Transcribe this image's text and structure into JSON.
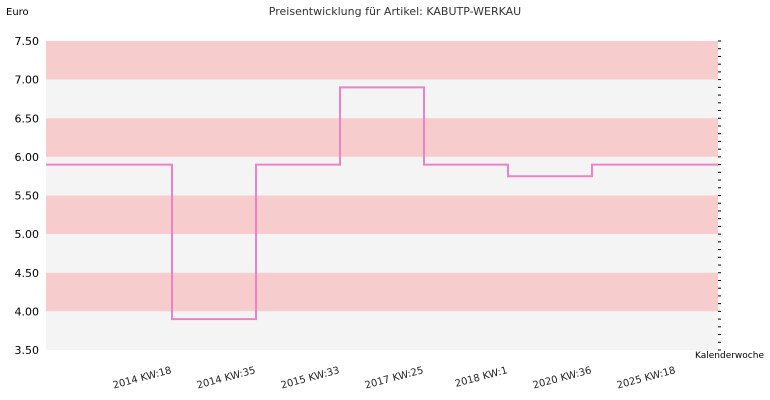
{
  "chart_data": {
    "type": "line",
    "step": true,
    "title": "Preisentwicklung für Artikel: KABUTP-WERKAU",
    "ylabel": "Euro",
    "xlabel": "Kalenderwoche",
    "ylim": [
      3.5,
      7.5
    ],
    "yticks": [
      "7.50",
      "7.00",
      "6.50",
      "6.00",
      "5.50",
      "5.00",
      "4.50",
      "4.00",
      "3.50"
    ],
    "categories": [
      "2014 KW:18",
      "2014 KW:35",
      "2015 KW:33",
      "2017 KW:25",
      "2018 KW:1",
      "2020 KW:36",
      "2025 KW:18"
    ],
    "series": [
      {
        "values": [
          5.9,
          3.9,
          5.9,
          6.9,
          5.9,
          5.75,
          5.9
        ]
      }
    ],
    "band_colors": [
      "#f7cccc",
      "#f4f4f4"
    ],
    "line_color": "#ee82c8",
    "grid": false
  }
}
